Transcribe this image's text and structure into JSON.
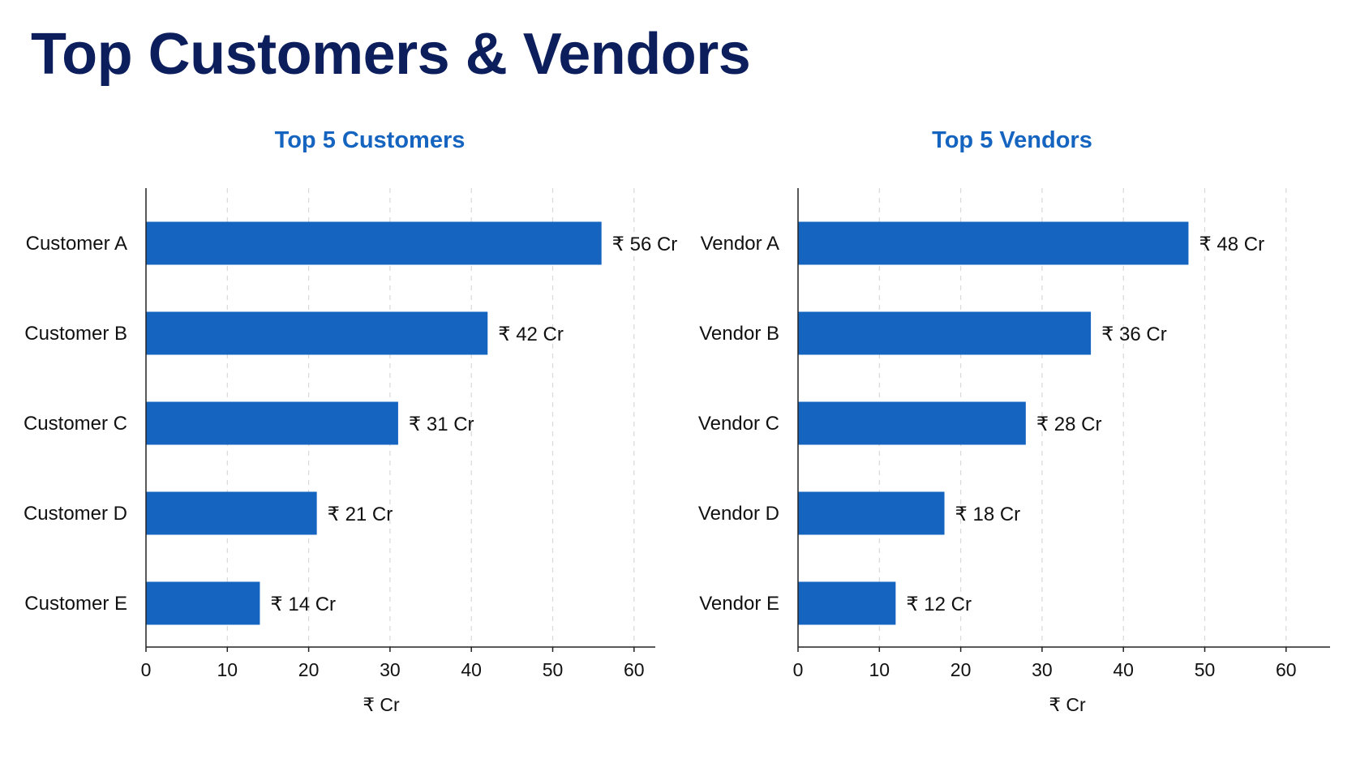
{
  "page": {
    "title": "Top Customers & Vendors"
  },
  "colors": {
    "title": "#0c1f5c",
    "chart_title": "#1565c0",
    "bar": "#1565c0",
    "grid": "#d9d9d9",
    "axis": "#222222"
  },
  "chart_data": [
    {
      "type": "bar",
      "orientation": "horizontal",
      "title": "Top 5 Customers",
      "categories": [
        "Customer A",
        "Customer B",
        "Customer C",
        "Customer D",
        "Customer E"
      ],
      "values": [
        56,
        42,
        31,
        21,
        14
      ],
      "data_labels": [
        "₹ 56 Cr",
        "₹ 42 Cr",
        "₹ 31 Cr",
        "₹ 21 Cr",
        "₹ 14 Cr"
      ],
      "xlabel": "₹ Cr",
      "ylabel": "",
      "xlim": [
        0,
        63
      ],
      "xticks": [
        0,
        10,
        20,
        30,
        40,
        50,
        60
      ],
      "grid": "vertical dashed"
    },
    {
      "type": "bar",
      "orientation": "horizontal",
      "title": "Top 5 Vendors",
      "categories": [
        "Vendor A",
        "Vendor B",
        "Vendor C",
        "Vendor D",
        "Vendor E"
      ],
      "values": [
        48,
        36,
        28,
        18,
        12
      ],
      "data_labels": [
        "₹ 48 Cr",
        "₹ 36 Cr",
        "₹ 28 Cr",
        "₹ 18 Cr",
        "₹ 12 Cr"
      ],
      "xlabel": "₹ Cr",
      "ylabel": "",
      "xlim": [
        0,
        62
      ],
      "xticks": [
        0,
        10,
        20,
        30,
        40,
        50,
        60
      ],
      "grid": "vertical dashed"
    }
  ]
}
